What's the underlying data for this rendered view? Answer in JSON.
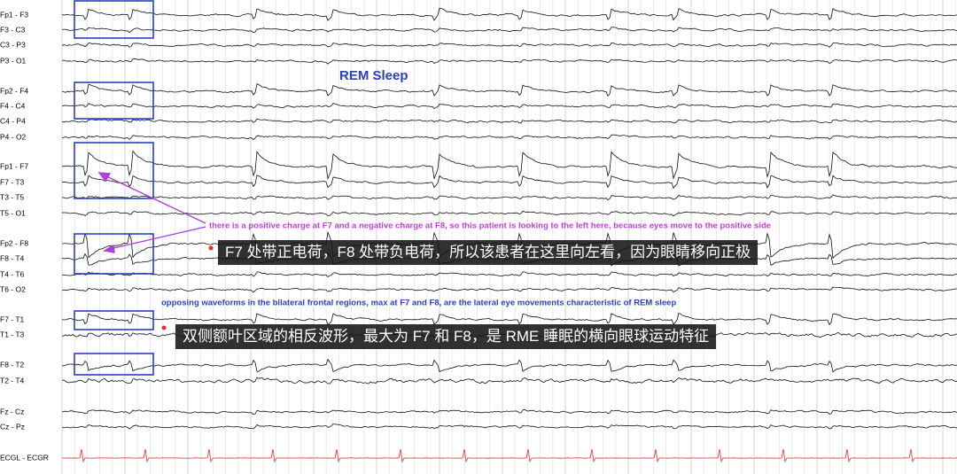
{
  "header": {
    "title": "REM Sleep"
  },
  "channels": [
    "Fp1 - F3",
    "F3 - C3",
    "C3 - P3",
    "P3 - O1",
    "Fp2 - F4",
    "F4 - C4",
    "C4 - P4",
    "P4 - O2",
    "Fp1 - F7",
    "F7 - T3",
    "T3 - T5",
    "T5 - O1",
    "Fp2 - F8",
    "F8 - T4",
    "T4 - T6",
    "T6 - O2",
    "F7 - T1",
    "T1 - T3",
    "F8 - T2",
    "T2 - T4",
    "Fz - Cz",
    "Cz - Pz",
    "ECGL - ECGR"
  ],
  "annotations": {
    "note_top": "there is a positive charge at F7 and a negative charge at F8, so this patient is looking to the left here, because eyes move to the positive side",
    "caption_top": "F7 处带正电荷，F8 处带负电荷，所以该患者在这里向左看，因为眼睛移向正极",
    "note_bottom": "opposing waveforms in the bilateral frontal regions, max at F7 and F8, are the lateral eye movements characteristic of REM sleep",
    "caption_bottom": "双侧额叶区域的相反波形，最大为 F7 和 F8，是 RME 睡眠的横向眼球运动特征"
  }
}
